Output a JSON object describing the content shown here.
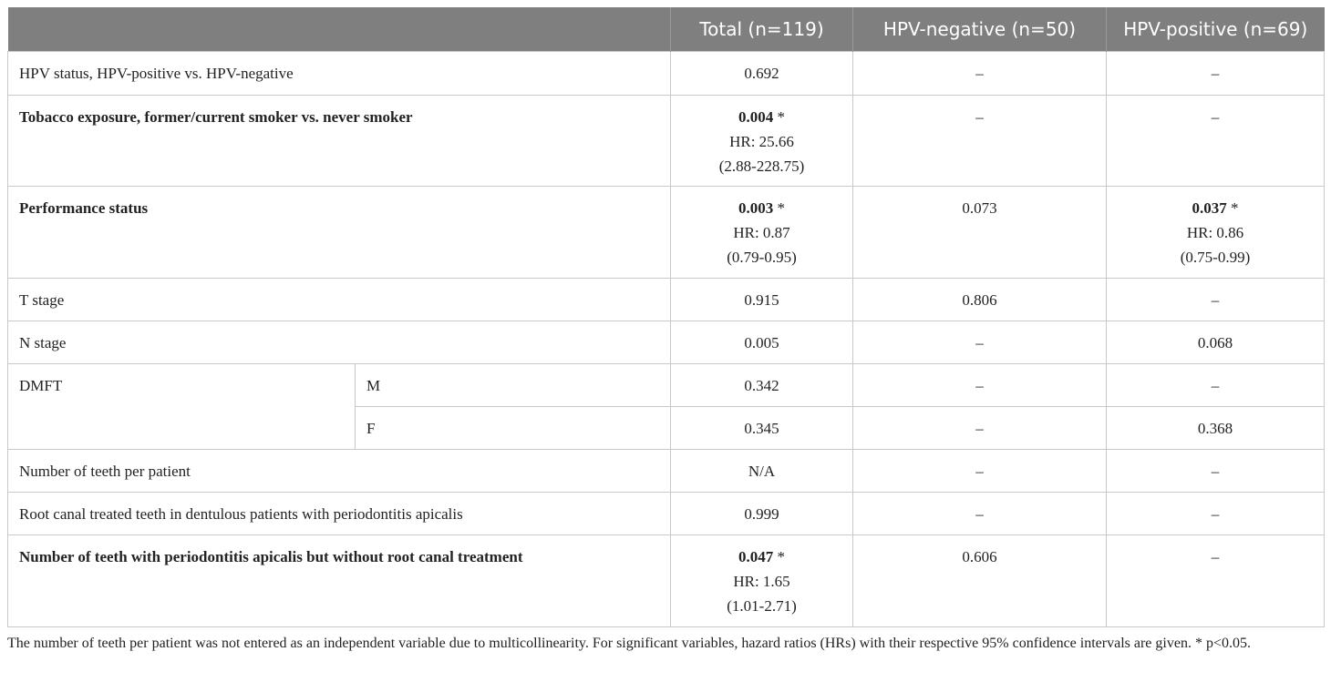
{
  "header": [
    "",
    "Total (n=119)",
    "HPV-negative (n=50)",
    "HPV-positive (n=69)"
  ],
  "rows": [
    {
      "label": "HPV status, HPV-positive vs. HPV-negative",
      "bold": false,
      "total": {
        "p": "0.692"
      },
      "neg": {
        "p": "–"
      },
      "pos": {
        "p": "–"
      }
    },
    {
      "label": "Tobacco exposure, former/current smoker vs. never smoker",
      "bold": true,
      "total": {
        "p": "0.004",
        "sig": "*",
        "hr": "HR: 25.66",
        "ci": "(2.88-228.75)"
      },
      "neg": {
        "p": "–"
      },
      "pos": {
        "p": "–"
      }
    },
    {
      "label": "Performance status",
      "bold": true,
      "total": {
        "p": "0.003",
        "sig": "*",
        "hr": "HR: 0.87",
        "ci": "(0.79-0.95)"
      },
      "neg": {
        "p": "0.073"
      },
      "pos": {
        "p": "0.037",
        "sig": "*",
        "hr": "HR: 0.86",
        "ci": "(0.75-0.99)"
      }
    },
    {
      "label": "T stage",
      "bold": false,
      "total": {
        "p": "0.915"
      },
      "neg": {
        "p": "0.806"
      },
      "pos": {
        "p": "–"
      }
    },
    {
      "label": "N stage",
      "bold": false,
      "total": {
        "p": "0.005"
      },
      "neg": {
        "p": "–"
      },
      "pos": {
        "p": "0.068"
      }
    },
    {
      "label": "DMFT",
      "sub": "M",
      "bold": false,
      "total": {
        "p": "0.342"
      },
      "neg": {
        "p": "–"
      },
      "pos": {
        "p": "–"
      }
    },
    {
      "label": "",
      "sub": "F",
      "bold": false,
      "total": {
        "p": "0.345"
      },
      "neg": {
        "p": "–"
      },
      "pos": {
        "p": "0.368"
      }
    },
    {
      "label": "Number of teeth per patient",
      "bold": false,
      "total": {
        "p": "N/A"
      },
      "neg": {
        "p": "–"
      },
      "pos": {
        "p": "–"
      }
    },
    {
      "label": "Root canal treated teeth in dentulous patients with periodontitis apicalis",
      "bold": false,
      "total": {
        "p": "0.999"
      },
      "neg": {
        "p": "–"
      },
      "pos": {
        "p": "–"
      }
    },
    {
      "label": "Number of teeth with periodontitis apicalis but without root canal treatment",
      "bold": true,
      "total": {
        "p": "0.047",
        "sig": "*",
        "hr": "HR: 1.65",
        "ci": "(1.01-2.71)"
      },
      "neg": {
        "p": "0.606"
      },
      "pos": {
        "p": "–"
      }
    }
  ],
  "footnote": "The number of teeth per patient was not entered as an independent variable due to multicollinearity. For significant variables, hazard ratios (HRs) with their respective 95% confidence intervals are given. * p<0.05."
}
